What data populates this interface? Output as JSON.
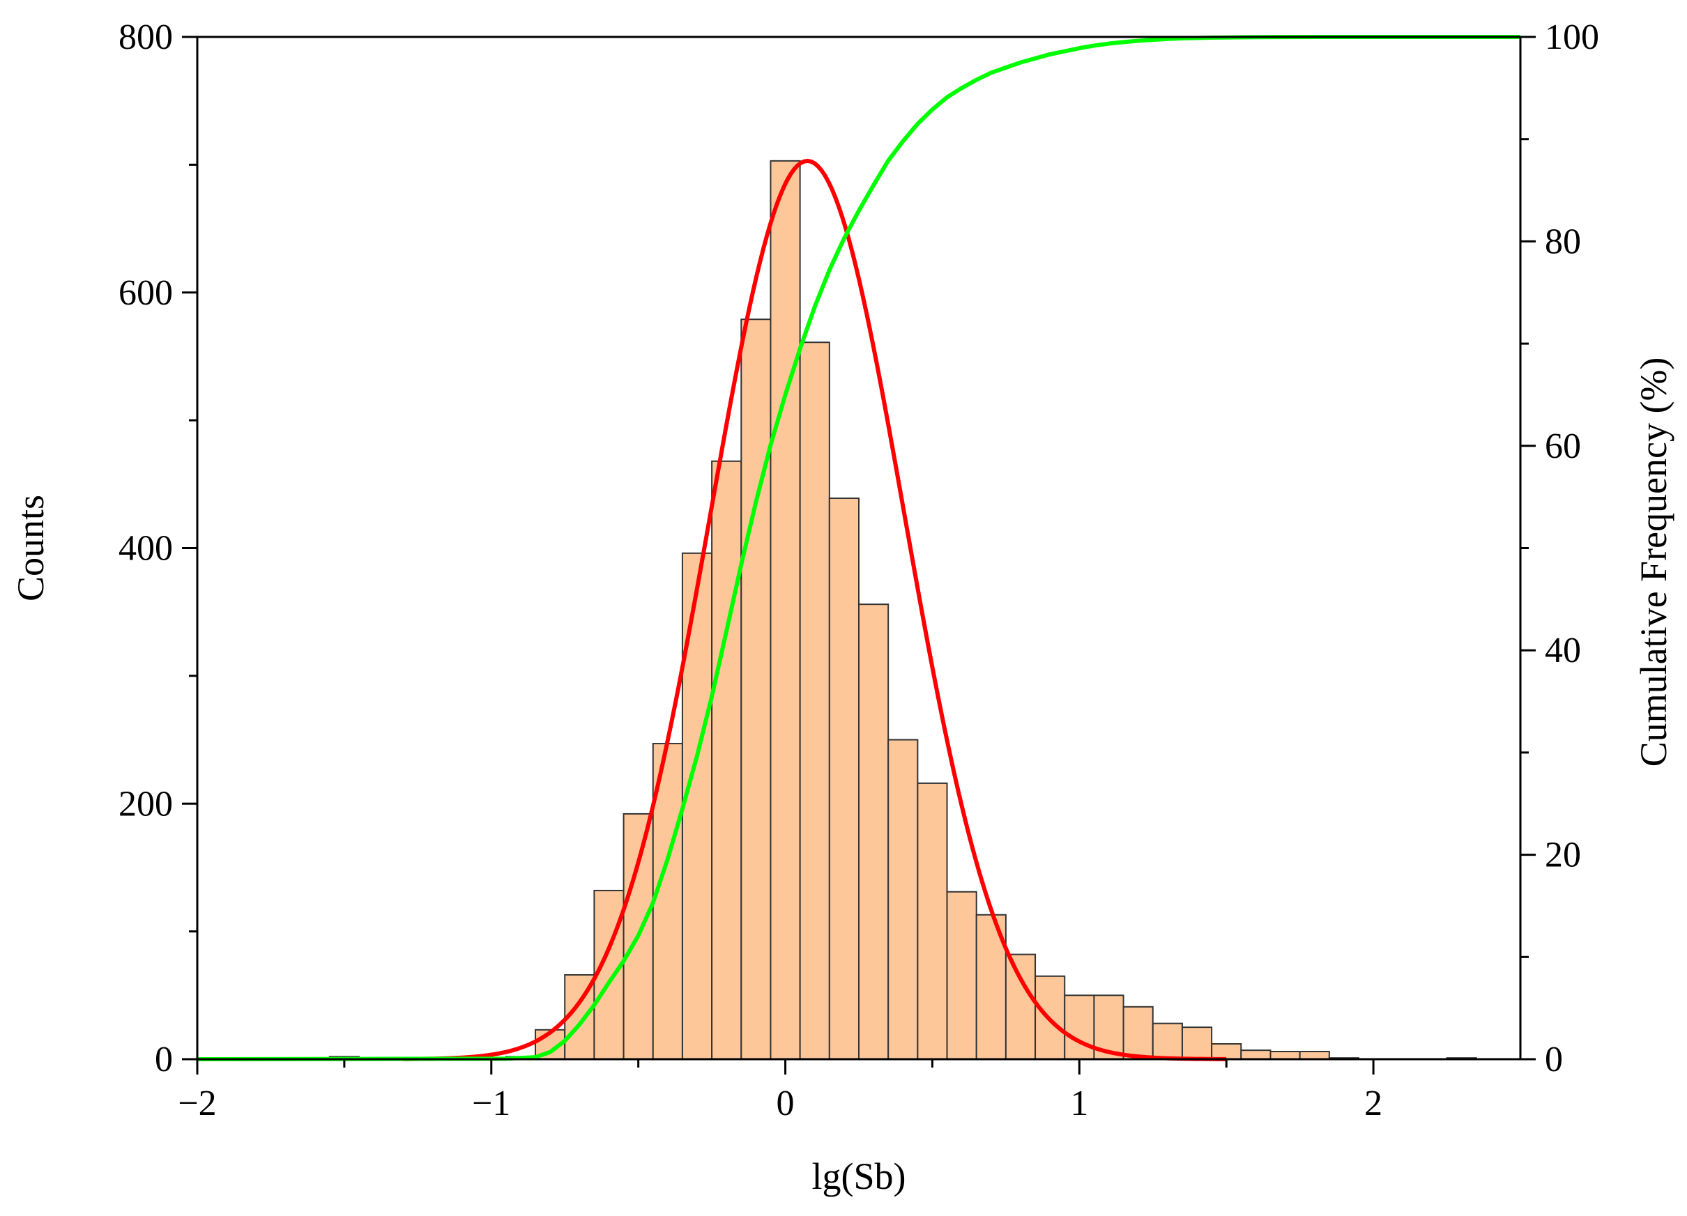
{
  "chart_data": {
    "type": "bar",
    "xlabel": "lg(Sb)",
    "ylabel": "Counts",
    "y2label": "Cumulative Frequency (%)",
    "xlim": [
      -2,
      2.5
    ],
    "ylim": [
      0,
      800
    ],
    "y2lim": [
      0,
      100
    ],
    "x_ticks": [
      -2,
      -1,
      0,
      1,
      2
    ],
    "x_tick_labels": [
      "−2",
      "−1",
      "0",
      "1",
      "2"
    ],
    "y_ticks": [
      0,
      200,
      400,
      600,
      800
    ],
    "y_tick_labels": [
      "0",
      "200",
      "400",
      "600",
      "800"
    ],
    "y2_ticks": [
      0,
      20,
      40,
      60,
      80,
      100
    ],
    "y2_tick_labels": [
      "0",
      "20",
      "40",
      "60",
      "80",
      "100"
    ],
    "grid": false,
    "legend": "none",
    "bin_width": 0.1,
    "bins": [
      {
        "x0": -1.55,
        "count": 2
      },
      {
        "x0": -0.95,
        "count": 2
      },
      {
        "x0": -0.85,
        "count": 23
      },
      {
        "x0": -0.75,
        "count": 66
      },
      {
        "x0": -0.65,
        "count": 132
      },
      {
        "x0": -0.55,
        "count": 192
      },
      {
        "x0": -0.45,
        "count": 247
      },
      {
        "x0": -0.35,
        "count": 396
      },
      {
        "x0": -0.25,
        "count": 468
      },
      {
        "x0": -0.15,
        "count": 579
      },
      {
        "x0": -0.05,
        "count": 703
      },
      {
        "x0": 0.05,
        "count": 561
      },
      {
        "x0": 0.15,
        "count": 439
      },
      {
        "x0": 0.25,
        "count": 356
      },
      {
        "x0": 0.35,
        "count": 250
      },
      {
        "x0": 0.45,
        "count": 216
      },
      {
        "x0": 0.55,
        "count": 131
      },
      {
        "x0": 0.65,
        "count": 113
      },
      {
        "x0": 0.75,
        "count": 82
      },
      {
        "x0": 0.85,
        "count": 65
      },
      {
        "x0": 0.95,
        "count": 50
      },
      {
        "x0": 1.05,
        "count": 50
      },
      {
        "x0": 1.15,
        "count": 41
      },
      {
        "x0": 1.25,
        "count": 28
      },
      {
        "x0": 1.35,
        "count": 25
      },
      {
        "x0": 1.45,
        "count": 12
      },
      {
        "x0": 1.55,
        "count": 7
      },
      {
        "x0": 1.65,
        "count": 6
      },
      {
        "x0": 1.75,
        "count": 6
      },
      {
        "x0": 1.85,
        "count": 1
      },
      {
        "x0": 2.25,
        "count": 1
      }
    ],
    "series": [
      {
        "type": "line",
        "axis": "left",
        "color": "#ff0000",
        "curve": "normal",
        "mean": 0.075,
        "sd": 0.33,
        "peak": 703,
        "x_range": [
          -1.3,
          1.5
        ]
      },
      {
        "type": "line",
        "axis": "right",
        "color": "#00ff00",
        "x": [
          -2.0,
          -0.95,
          -0.85,
          -0.8,
          -0.75,
          -0.7,
          -0.65,
          -0.6,
          -0.55,
          -0.5,
          -0.45,
          -0.4,
          -0.35,
          -0.3,
          -0.25,
          -0.2,
          -0.15,
          -0.1,
          -0.05,
          0.0,
          0.05,
          0.1,
          0.15,
          0.2,
          0.25,
          0.3,
          0.35,
          0.4,
          0.45,
          0.5,
          0.55,
          0.6,
          0.65,
          0.7,
          0.75,
          0.8,
          0.85,
          0.9,
          0.95,
          1.0,
          1.05,
          1.1,
          1.15,
          1.2,
          1.25,
          1.3,
          1.35,
          1.4,
          1.45,
          1.5,
          1.55,
          1.6,
          1.7,
          1.8,
          1.9,
          2.0,
          2.5
        ],
        "values": [
          0,
          0.05,
          0.2,
          0.7,
          1.8,
          3.4,
          5.3,
          7.5,
          9.6,
          12.1,
          15.3,
          19.6,
          24.5,
          29.7,
          35.5,
          41.9,
          48.4,
          54.5,
          60.1,
          65.0,
          69.5,
          73.6,
          77.2,
          80.3,
          83.0,
          85.5,
          87.9,
          89.8,
          91.5,
          92.9,
          94.1,
          95.0,
          95.8,
          96.5,
          97.0,
          97.5,
          97.9,
          98.3,
          98.6,
          98.9,
          99.15,
          99.35,
          99.5,
          99.62,
          99.72,
          99.8,
          99.86,
          99.9,
          99.93,
          99.95,
          99.97,
          99.98,
          99.99,
          100,
          100,
          100,
          100
        ]
      }
    ],
    "colors": {
      "bar_fill": "#fdc79a",
      "bar_stroke": "#333333",
      "axis": "#000000"
    }
  }
}
